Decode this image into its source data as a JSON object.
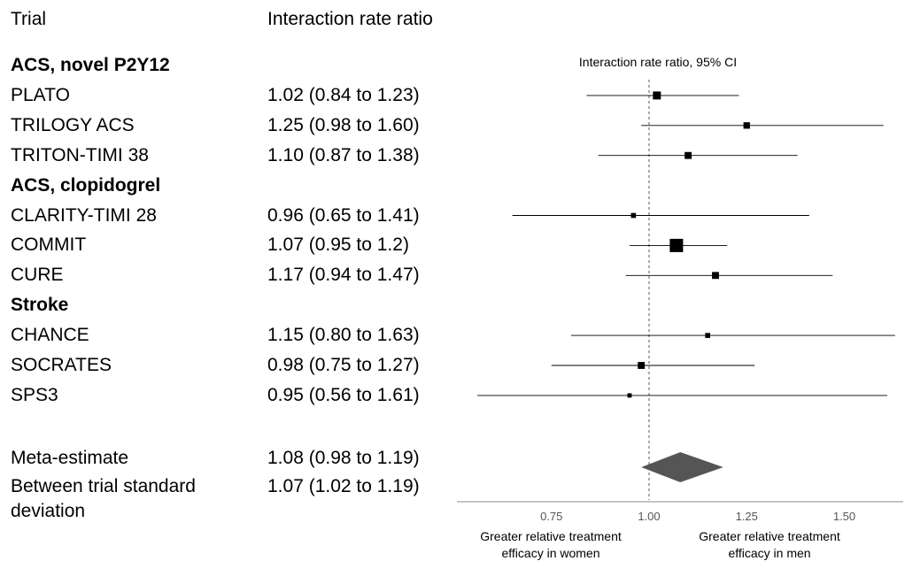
{
  "headers": {
    "trial": "Trial",
    "estimate": "Interaction rate ratio"
  },
  "plot_title": "Interaction rate ratio, 95% CI",
  "direction_labels": {
    "left": [
      "Greater relative treatment",
      "efficacy in women"
    ],
    "right": [
      "Greater relative treatment",
      "efficacy in men"
    ]
  },
  "rows": [
    {
      "type": "group",
      "label": "ACS, novel P2Y12"
    },
    {
      "type": "trial",
      "label": "PLATO",
      "estimate_text": "1.02 (0.84 to 1.23)"
    },
    {
      "type": "trial",
      "label": "TRILOGY ACS",
      "estimate_text": "1.25 (0.98 to 1.60)"
    },
    {
      "type": "trial",
      "label": "TRITON-TIMI 38",
      "estimate_text": "1.10 (0.87 to 1.38)"
    },
    {
      "type": "group",
      "label": "ACS, clopidogrel"
    },
    {
      "type": "trial",
      "label": "CLARITY-TIMI 28",
      "estimate_text": "0.96 (0.65 to 1.41)"
    },
    {
      "type": "trial",
      "label": "COMMIT",
      "estimate_text": "1.07 (0.95 to 1.2)"
    },
    {
      "type": "trial",
      "label": "CURE",
      "estimate_text": "1.17 (0.94 to 1.47)"
    },
    {
      "type": "group",
      "label": "Stroke"
    },
    {
      "type": "trial",
      "label": "CHANCE",
      "estimate_text": "1.15 (0.80 to 1.63)"
    },
    {
      "type": "trial",
      "label": "SOCRATES",
      "estimate_text": "0.98 (0.75 to 1.27)"
    },
    {
      "type": "trial",
      "label": "SPS3",
      "estimate_text": "0.95 (0.56 to 1.61)"
    }
  ],
  "summary": [
    {
      "label": "Meta-estimate",
      "estimate_text": "1.08 (0.98 to 1.19)"
    },
    {
      "label": "Between trial standard",
      "label_line2": "deviation",
      "estimate_text": "1.07 (1.02 to 1.19)"
    }
  ],
  "chart_data": {
    "type": "forest",
    "title": "Interaction rate ratio, 95% CI",
    "x_ticks": [
      "0.75",
      "1.00",
      "1.25",
      "1.50"
    ],
    "xlim": [
      0.5,
      1.65
    ],
    "reference_line": 1.0,
    "points": [
      {
        "name": "PLATO",
        "estimate": 1.02,
        "lower": 0.84,
        "upper": 1.23,
        "weight": 0.45
      },
      {
        "name": "TRILOGY ACS",
        "estimate": 1.25,
        "lower": 0.98,
        "upper": 1.6,
        "weight": 0.3
      },
      {
        "name": "TRITON-TIMI 38",
        "estimate": 1.1,
        "lower": 0.87,
        "upper": 1.38,
        "weight": 0.35
      },
      {
        "name": "CLARITY-TIMI 28",
        "estimate": 0.96,
        "lower": 0.65,
        "upper": 1.41,
        "weight": 0.15
      },
      {
        "name": "COMMIT",
        "estimate": 1.07,
        "lower": 0.95,
        "upper": 1.2,
        "weight": 1.0
      },
      {
        "name": "CURE",
        "estimate": 1.17,
        "lower": 0.94,
        "upper": 1.47,
        "weight": 0.35
      },
      {
        "name": "CHANCE",
        "estimate": 1.15,
        "lower": 0.8,
        "upper": 1.63,
        "weight": 0.15
      },
      {
        "name": "SOCRATES",
        "estimate": 0.98,
        "lower": 0.75,
        "upper": 1.27,
        "weight": 0.35
      },
      {
        "name": "SPS3",
        "estimate": 0.95,
        "lower": 0.56,
        "upper": 1.61,
        "weight": 0.08
      }
    ],
    "meta_estimate": {
      "estimate": 1.08,
      "lower": 0.98,
      "upper": 1.19
    },
    "colors": {
      "marker": "#000000",
      "diamond": "#555555",
      "axis": "#888888",
      "reference": "#555555"
    }
  }
}
